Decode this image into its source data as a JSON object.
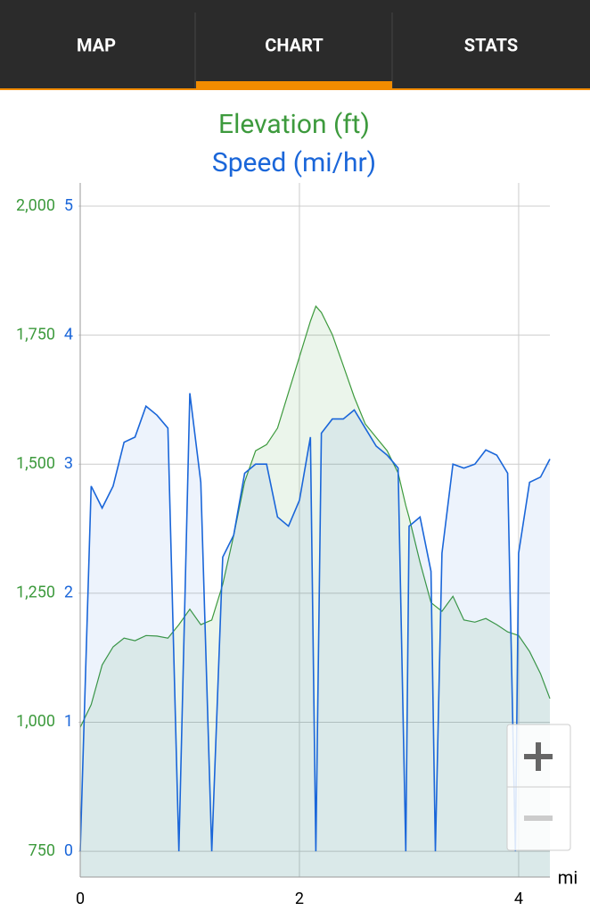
{
  "tabs": [
    "MAP",
    "CHART",
    "STATS"
  ],
  "chart_data": {
    "type": "area",
    "title": "Elevation (ft)",
    "subtitle": "Speed (mi/hr)",
    "x_label": "mi",
    "x": [
      0,
      0.1,
      0.2,
      0.3,
      0.4,
      0.5,
      0.6,
      0.7,
      0.8,
      0.9,
      1.0,
      1.1,
      1.2,
      1.3,
      1.4,
      1.5,
      1.6,
      1.7,
      1.8,
      1.9,
      2.0,
      2.1,
      2.15,
      2.2,
      2.3,
      2.4,
      2.5,
      2.6,
      2.7,
      2.8,
      2.9,
      2.97,
      3.0,
      3.1,
      3.2,
      3.24,
      3.3,
      3.4,
      3.5,
      3.6,
      3.7,
      3.8,
      3.9,
      3.97,
      4.0,
      4.1,
      4.2,
      4.285
    ],
    "series": [
      {
        "name": "Elevation (ft)",
        "color": "#3d9a3d",
        "fill": "rgba(61,154,61,0.1)",
        "axis": "y",
        "values": [
          990,
          1034,
          1111,
          1146,
          1163,
          1158,
          1168,
          1167,
          1163,
          1189,
          1219,
          1189,
          1198,
          1267,
          1362,
          1466,
          1526,
          1538,
          1570,
          1639,
          1708,
          1777,
          1806,
          1794,
          1751,
          1691,
          1630,
          1578,
          1552,
          1526,
          1483,
          1420,
          1397,
          1310,
          1232,
          1225,
          1215,
          1244,
          1198,
          1194,
          1201,
          1189,
          1175,
          1170,
          1168,
          1137,
          1094,
          1046
        ]
      },
      {
        "name": "Speed (mi/hr)",
        "color": "#1a66d9",
        "fill": "rgba(26,102,217,0.08)",
        "axis": "y2",
        "values": [
          0,
          2.83,
          2.66,
          2.83,
          3.17,
          3.21,
          3.45,
          3.38,
          3.28,
          0,
          3.55,
          2.86,
          0,
          2.28,
          2.45,
          2.93,
          3.0,
          3.0,
          2.59,
          2.52,
          2.72,
          3.21,
          0,
          3.24,
          3.35,
          3.35,
          3.42,
          3.28,
          3.14,
          3.07,
          2.97,
          0,
          2.52,
          2.59,
          2.17,
          0,
          2.31,
          3.0,
          2.97,
          3.0,
          3.11,
          3.07,
          2.93,
          0,
          2.31,
          2.86,
          2.9,
          3.04
        ]
      }
    ],
    "xlim": [
      0,
      4.285
    ],
    "xticks": [
      0,
      2,
      4
    ],
    "ylim": [
      700,
      2045
    ],
    "yticks": [
      750,
      {
        "value": 1000,
        "label": "1,000"
      },
      {
        "value": 1250,
        "label": "1,250"
      },
      {
        "value": 1500,
        "label": "1,500"
      },
      {
        "value": 1750,
        "label": "1,750"
      },
      {
        "value": 2000,
        "label": "2,000"
      }
    ],
    "y2lim": [
      -0.2,
      5.18
    ],
    "y2ticks": [
      0,
      1,
      2,
      3,
      4,
      5
    ],
    "grid": true
  }
}
